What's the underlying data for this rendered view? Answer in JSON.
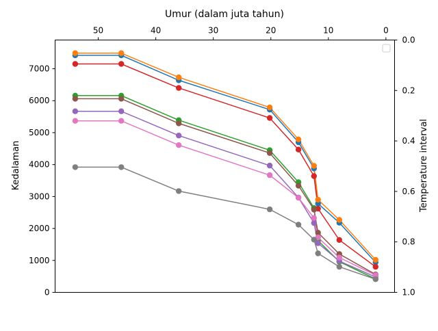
{
  "chart_data": {
    "type": "line",
    "title": "Umur (dalam juta tahun)",
    "xlabel": "Umur (dalam juta tahun)",
    "ylabel": "Kedalaman",
    "y2label": "Temperature interval",
    "xlim": [
      57.5,
      -1.5
    ],
    "ylim": [
      0,
      7900
    ],
    "y2lim": [
      1.0,
      0.0
    ],
    "x_ticks": [
      50,
      40,
      30,
      20,
      10,
      0
    ],
    "y_ticks": [
      0,
      1000,
      2000,
      3000,
      4000,
      5000,
      6000,
      7000
    ],
    "y2_ticks": [
      0.0,
      0.2,
      0.4,
      0.6,
      0.8,
      1.0
    ],
    "x_tick_labels": [
      "50",
      "40",
      "30",
      "20",
      "10",
      "0"
    ],
    "y_tick_labels": [
      "0",
      "1000",
      "2000",
      "3000",
      "4000",
      "5000",
      "6000",
      "7000"
    ],
    "y2_tick_labels": [
      "0.0",
      "0.2",
      "0.4",
      "0.6",
      "0.8",
      "1.0"
    ],
    "x": [
      54,
      46,
      36,
      20.2,
      15.2,
      12.5,
      11.8,
      8.1,
      1.8
    ],
    "legend_position": "top-right",
    "series": [
      {
        "color": "#1f77b4",
        "values": [
          7420,
          7420,
          6640,
          5720,
          4700,
          3880,
          2780,
          2180,
          940
        ]
      },
      {
        "color": "#ff7f0e",
        "values": [
          7490,
          7490,
          6730,
          5790,
          4790,
          3960,
          2900,
          2270,
          1020
        ]
      },
      {
        "color": "#2ca02c",
        "values": [
          6160,
          6160,
          5390,
          4450,
          3450,
          2640,
          1620,
          960,
          420
        ]
      },
      {
        "color": "#d62728",
        "values": [
          7150,
          7150,
          6400,
          5460,
          4470,
          3640,
          2620,
          1640,
          800
        ]
      },
      {
        "color": "#9467bd",
        "values": [
          5670,
          5670,
          4910,
          3970,
          2970,
          2170,
          1540,
          980,
          480
        ]
      },
      {
        "color": "#8c564b",
        "values": [
          6060,
          6060,
          5290,
          4360,
          3340,
          2590,
          1870,
          1200,
          560
        ]
      },
      {
        "color": "#e377c2",
        "values": [
          5370,
          5370,
          4610,
          3670,
          2960,
          2330,
          1720,
          1090,
          540
        ]
      },
      {
        "color": "#7f7f7f",
        "values": [
          3920,
          3920,
          3170,
          2600,
          2120,
          1650,
          1220,
          800,
          410
        ]
      }
    ]
  }
}
